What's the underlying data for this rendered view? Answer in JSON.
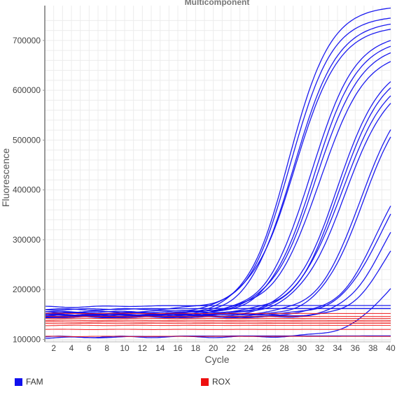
{
  "chart_data": {
    "type": "line",
    "title": "Multicomponent",
    "xlabel": "Cycle",
    "ylabel": "Fluorescence",
    "xlim": [
      1,
      40
    ],
    "ylim": [
      95000,
      770000
    ],
    "x_ticks": [
      2,
      4,
      6,
      8,
      10,
      12,
      14,
      16,
      18,
      20,
      22,
      24,
      26,
      28,
      30,
      32,
      34,
      36,
      38,
      40
    ],
    "y_ticks": [
      100000,
      200000,
      300000,
      400000,
      500000,
      600000,
      700000
    ],
    "grid": true,
    "legend": [
      {
        "name": "FAM",
        "color": "#1010ee"
      },
      {
        "name": "ROX",
        "color": "#ee1010"
      }
    ],
    "series": [
      {
        "dye": "FAM",
        "baseline": 150000,
        "plateau": 770000,
        "midpoint": 28.5,
        "slope": 0.42
      },
      {
        "dye": "FAM",
        "baseline": 155000,
        "plateau": 750000,
        "midpoint": 28.7,
        "slope": 0.42
      },
      {
        "dye": "FAM",
        "baseline": 145000,
        "plateau": 740000,
        "midpoint": 29.0,
        "slope": 0.4
      },
      {
        "dye": "FAM",
        "baseline": 160000,
        "plateau": 730000,
        "midpoint": 29.2,
        "slope": 0.4
      },
      {
        "dye": "FAM",
        "baseline": 150000,
        "plateau": 715000,
        "midpoint": 31.0,
        "slope": 0.4
      },
      {
        "dye": "FAM",
        "baseline": 148000,
        "plateau": 705000,
        "midpoint": 31.3,
        "slope": 0.4
      },
      {
        "dye": "FAM",
        "baseline": 152000,
        "plateau": 695000,
        "midpoint": 31.6,
        "slope": 0.39
      },
      {
        "dye": "FAM",
        "baseline": 155000,
        "plateau": 680000,
        "midpoint": 32.0,
        "slope": 0.39
      },
      {
        "dye": "FAM",
        "baseline": 150000,
        "plateau": 660000,
        "midpoint": 34.0,
        "slope": 0.4
      },
      {
        "dye": "FAM",
        "baseline": 147000,
        "plateau": 650000,
        "midpoint": 34.2,
        "slope": 0.4
      },
      {
        "dye": "FAM",
        "baseline": 153000,
        "plateau": 640000,
        "midpoint": 34.5,
        "slope": 0.39
      },
      {
        "dye": "FAM",
        "baseline": 149000,
        "plateau": 630000,
        "midpoint": 34.8,
        "slope": 0.39
      },
      {
        "dye": "FAM",
        "baseline": 150000,
        "plateau": 610000,
        "midpoint": 36.6,
        "slope": 0.42
      },
      {
        "dye": "FAM",
        "baseline": 146000,
        "plateau": 600000,
        "midpoint": 36.8,
        "slope": 0.42
      },
      {
        "dye": "FAM",
        "baseline": 148000,
        "plateau": 480000,
        "midpoint": 38.5,
        "slope": 0.45
      },
      {
        "dye": "FAM",
        "baseline": 150000,
        "plateau": 470000,
        "midpoint": 38.8,
        "slope": 0.45
      },
      {
        "dye": "FAM",
        "baseline": 145000,
        "plateau": 420000,
        "midpoint": 39.0,
        "slope": 0.48
      },
      {
        "dye": "FAM",
        "baseline": 145000,
        "plateau": 380000,
        "midpoint": 39.5,
        "slope": 0.5
      },
      {
        "dye": "FAM",
        "baseline": 105000,
        "plateau": 300000,
        "midpoint": 40.0,
        "slope": 0.42
      },
      {
        "dye": "FAM",
        "baseline": 165000,
        "plateau": 168000,
        "midpoint": 10,
        "slope": 0.3
      },
      {
        "dye": "FAM",
        "baseline": 160000,
        "plateau": 162000,
        "midpoint": 10,
        "slope": 0.3
      },
      {
        "dye": "FAM",
        "baseline": 103000,
        "plateau": 107000,
        "midpoint": 10,
        "slope": 0.3
      },
      {
        "dye": "ROX",
        "baseline": 152000,
        "plateau": 152000,
        "midpoint": 10,
        "slope": 0.1
      },
      {
        "dye": "ROX",
        "baseline": 146000,
        "plateau": 146000,
        "midpoint": 10,
        "slope": 0.1
      },
      {
        "dye": "ROX",
        "baseline": 142000,
        "plateau": 142000,
        "midpoint": 10,
        "slope": 0.1
      },
      {
        "dye": "ROX",
        "baseline": 138000,
        "plateau": 138000,
        "midpoint": 10,
        "slope": 0.1
      },
      {
        "dye": "ROX",
        "baseline": 135000,
        "plateau": 135000,
        "midpoint": 10,
        "slope": 0.1
      },
      {
        "dye": "ROX",
        "baseline": 132000,
        "plateau": 132000,
        "midpoint": 10,
        "slope": 0.1
      },
      {
        "dye": "ROX",
        "baseline": 128000,
        "plateau": 128000,
        "midpoint": 10,
        "slope": 0.1
      },
      {
        "dye": "ROX",
        "baseline": 120000,
        "plateau": 120000,
        "midpoint": 10,
        "slope": 0.1
      },
      {
        "dye": "ROX",
        "baseline": 106000,
        "plateau": 106000,
        "midpoint": 10,
        "slope": 0.1
      }
    ]
  }
}
